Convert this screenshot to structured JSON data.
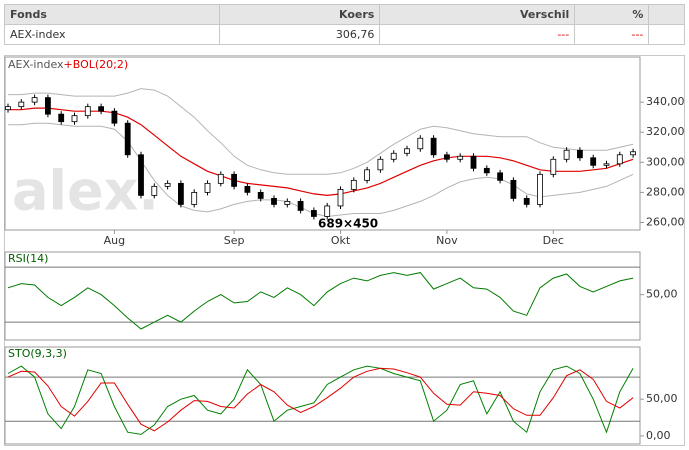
{
  "table": {
    "headers": [
      "Fonds",
      "Koers",
      "Verschil",
      "%"
    ],
    "rows": [
      [
        "AEX-index",
        "306,76",
        "---",
        "---"
      ]
    ]
  },
  "chart_data": [
    {
      "type": "candlestick",
      "title": "AEX-index",
      "overlay_label": "+BOL(20;2)",
      "logo": "alex.",
      "size_label": "689×450",
      "categories": [
        null,
        null,
        null,
        null,
        null,
        null,
        null,
        null,
        "Aug",
        null,
        null,
        null,
        null,
        null,
        null,
        null,
        null,
        "Sep",
        null,
        null,
        null,
        null,
        null,
        null,
        null,
        "Okt",
        null,
        null,
        null,
        null,
        null,
        null,
        null,
        "Nov",
        null,
        null,
        null,
        null,
        null,
        null,
        null,
        "Dec",
        null,
        null,
        null,
        null,
        null,
        null
      ],
      "open": [
        335,
        337,
        340,
        343,
        332,
        327,
        331,
        337,
        334,
        326,
        305,
        278,
        284,
        286,
        272,
        280,
        286,
        292,
        284,
        280,
        276,
        272,
        274,
        268,
        264,
        271,
        282,
        288,
        295,
        302,
        306,
        309,
        316,
        305,
        302,
        304,
        296,
        293,
        288,
        276,
        272,
        292,
        302,
        308,
        303,
        298,
        299,
        305
      ],
      "high": [
        339,
        342,
        345,
        345,
        334,
        333,
        339,
        339,
        336,
        328,
        307,
        286,
        288,
        288,
        282,
        288,
        294,
        294,
        286,
        282,
        278,
        276,
        276,
        270,
        273,
        284,
        290,
        297,
        304,
        308,
        311,
        318,
        318,
        307,
        306,
        306,
        298,
        295,
        290,
        278,
        294,
        304,
        310,
        310,
        305,
        301,
        307,
        309
      ],
      "low": [
        333,
        335,
        338,
        330,
        325,
        325,
        329,
        332,
        324,
        303,
        276,
        276,
        282,
        270,
        270,
        278,
        284,
        282,
        278,
        274,
        270,
        270,
        266,
        262,
        262,
        269,
        280,
        286,
        293,
        300,
        304,
        307,
        303,
        300,
        300,
        294,
        291,
        286,
        274,
        270,
        270,
        290,
        300,
        301,
        296,
        296,
        297,
        303
      ],
      "close": [
        337,
        340,
        343,
        332,
        327,
        331,
        337,
        334,
        326,
        305,
        278,
        284,
        286,
        272,
        280,
        286,
        292,
        284,
        280,
        276,
        272,
        274,
        268,
        264,
        271,
        282,
        288,
        295,
        302,
        306,
        309,
        316,
        305,
        302,
        304,
        296,
        293,
        288,
        276,
        272,
        292,
        302,
        308,
        303,
        298,
        299,
        305,
        307
      ],
      "upper": [
        345,
        345,
        346,
        346,
        345,
        344,
        344,
        344,
        344,
        346,
        349,
        348,
        344,
        337,
        330,
        321,
        313,
        304,
        298,
        295,
        293,
        292,
        292,
        292,
        292,
        293,
        296,
        300,
        306,
        312,
        317,
        322,
        324,
        323,
        321,
        319,
        318,
        317,
        317,
        317,
        313,
        310,
        309,
        308,
        308,
        308,
        310,
        312
      ],
      "middle": [
        335,
        335,
        336,
        336,
        335,
        334,
        334,
        334,
        333,
        330,
        325,
        318,
        311,
        304,
        299,
        294,
        291,
        288,
        286,
        285,
        284,
        283,
        281,
        279,
        278,
        279,
        281,
        283,
        286,
        290,
        294,
        298,
        301,
        303,
        304,
        304,
        304,
        303,
        301,
        298,
        295,
        294,
        294,
        294,
        295,
        296,
        299,
        302
      ],
      "lower": [
        325,
        325,
        326,
        326,
        325,
        324,
        324,
        324,
        322,
        314,
        301,
        288,
        278,
        271,
        268,
        267,
        269,
        272,
        274,
        275,
        275,
        274,
        270,
        266,
        264,
        265,
        266,
        266,
        266,
        268,
        271,
        274,
        278,
        283,
        287,
        289,
        290,
        289,
        285,
        279,
        277,
        278,
        279,
        280,
        282,
        284,
        288,
        292
      ],
      "band_color": "#b4b4b4",
      "middle_color": "#e00000",
      "up_color": "#ffffff",
      "down_color": "#000000",
      "ylim": [
        255,
        370
      ],
      "yticks": [
        {
          "value": 260,
          "label": "260,00"
        },
        {
          "value": 280,
          "label": "280,00"
        },
        {
          "value": 300,
          "label": "300,00"
        },
        {
          "value": 320,
          "label": "320,00"
        },
        {
          "value": 340,
          "label": "340,00"
        }
      ]
    },
    {
      "type": "line",
      "title": "RSI(14)",
      "ylim": [
        17,
        81
      ],
      "yticks": [
        {
          "value": 50,
          "label": "50,00"
        }
      ],
      "levels": [
        30,
        70
      ],
      "series": [
        {
          "color": "#007a00",
          "values": [
            55,
            58,
            57,
            48,
            42,
            48,
            55,
            50,
            42,
            33,
            25,
            30,
            35,
            30,
            38,
            45,
            50,
            44,
            45,
            52,
            48,
            55,
            50,
            42,
            52,
            58,
            62,
            60,
            64,
            66,
            64,
            66,
            54,
            58,
            62,
            55,
            54,
            48,
            38,
            35,
            55,
            62,
            65,
            56,
            52,
            56,
            60,
            62
          ]
        }
      ]
    },
    {
      "type": "line",
      "title": "STO(9,3,3)",
      "ylim": [
        -11,
        121
      ],
      "yticks": [
        {
          "value": 0,
          "label": "0,00"
        },
        {
          "value": 50,
          "label": "50,00"
        }
      ],
      "levels": [
        20,
        80
      ],
      "series": [
        {
          "color": "#008000",
          "values": [
            85,
            95,
            80,
            30,
            10,
            40,
            90,
            85,
            40,
            5,
            2,
            15,
            40,
            50,
            55,
            35,
            30,
            50,
            90,
            70,
            20,
            35,
            40,
            45,
            70,
            80,
            90,
            95,
            92,
            85,
            80,
            75,
            20,
            35,
            70,
            75,
            30,
            60,
            20,
            5,
            60,
            90,
            95,
            85,
            50,
            5,
            60,
            92
          ]
        },
        {
          "color": "#e00000",
          "values": [
            80,
            88,
            87,
            68,
            40,
            27,
            47,
            72,
            72,
            43,
            16,
            7,
            19,
            35,
            48,
            47,
            40,
            38,
            57,
            70,
            60,
            42,
            32,
            40,
            52,
            65,
            80,
            88,
            92,
            91,
            86,
            80,
            58,
            43,
            42,
            60,
            58,
            55,
            37,
            28,
            28,
            52,
            82,
            90,
            77,
            47,
            38,
            52
          ]
        }
      ]
    }
  ]
}
